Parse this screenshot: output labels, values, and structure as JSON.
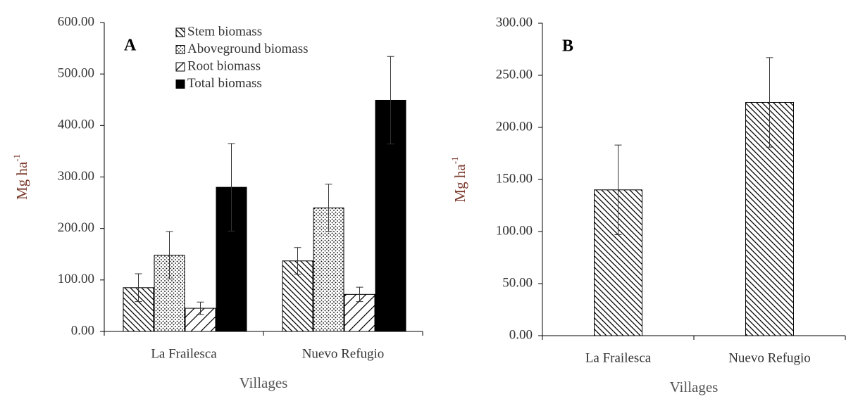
{
  "chart_data": [
    {
      "type": "bar",
      "panel_label": "A",
      "x_label": "Villages",
      "y_label": "Mg ha",
      "y_label_superscript": "-1",
      "categories": [
        "La Frailesca",
        "Nuevo Refugio"
      ],
      "series": [
        {
          "name": "Stem biomass",
          "color": "#000000",
          "pattern": "back-hatch",
          "values": [
            85,
            137
          ],
          "errors": [
            27,
            26
          ]
        },
        {
          "name": "Aboveground biomass",
          "color": "#000000",
          "pattern": "dots",
          "values": [
            148,
            240
          ],
          "errors": [
            46,
            46
          ]
        },
        {
          "name": "Root biomass",
          "color": "#000000",
          "pattern": "forward-hatch",
          "values": [
            45,
            72
          ],
          "errors": [
            12,
            14
          ]
        },
        {
          "name": "Total biomass",
          "color": "#000000",
          "pattern": "solid",
          "values": [
            280,
            449
          ],
          "errors": [
            85,
            85
          ]
        }
      ],
      "ylim": [
        0,
        600
      ],
      "yticks": [
        {
          "value": 0,
          "label": "0.00"
        },
        {
          "value": 100,
          "label": "100.00"
        },
        {
          "value": 200,
          "label": "200.00"
        },
        {
          "value": 300,
          "label": "300.00"
        },
        {
          "value": 400,
          "label": "400.00"
        },
        {
          "value": 500,
          "label": "500.00"
        },
        {
          "value": 600,
          "label": "600.00"
        }
      ],
      "legend": "top-left"
    },
    {
      "type": "bar",
      "panel_label": "B",
      "x_label": "Villages",
      "y_label": "Mg ha",
      "y_label_superscript": "-1",
      "categories": [
        "La Frailesca",
        "Nuevo Refugio"
      ],
      "series": [
        {
          "color": "#000000",
          "pattern": "back-hatch",
          "values": [
            140,
            224
          ],
          "errors": [
            43,
            43
          ]
        }
      ],
      "ylim": [
        0,
        300
      ],
      "yticks": [
        {
          "value": 0,
          "label": "0.00"
        },
        {
          "value": 50,
          "label": "50.00"
        },
        {
          "value": 100,
          "label": "100.00"
        },
        {
          "value": 150,
          "label": "150.00"
        },
        {
          "value": 200,
          "label": "200.00"
        },
        {
          "value": 250,
          "label": "250.00"
        },
        {
          "value": 300,
          "label": "300.00"
        }
      ]
    }
  ]
}
